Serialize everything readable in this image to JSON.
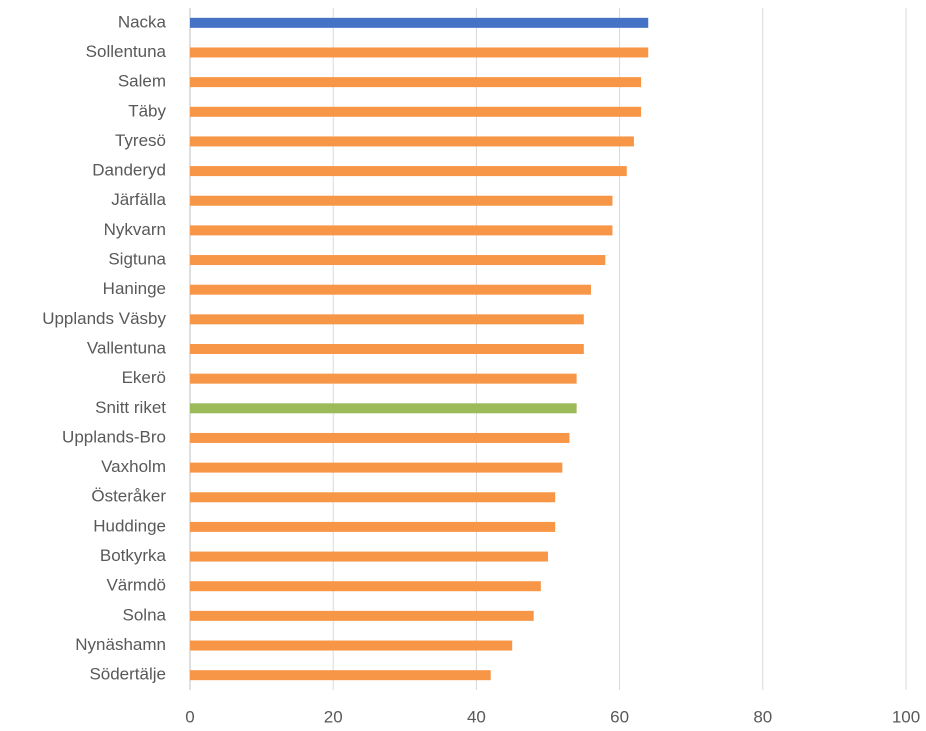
{
  "chart_data": {
    "type": "barh",
    "categories": [
      "Nacka",
      "Sollentuna",
      "Salem",
      "Täby",
      "Tyresö",
      "Danderyd",
      "Järfälla",
      "Nykvarn",
      "Sigtuna",
      "Haninge",
      "Upplands Väsby",
      "Vallentuna",
      "Ekerö",
      "Snitt riket",
      "Upplands-Bro",
      "Vaxholm",
      "Österåker",
      "Huddinge",
      "Botkyrka",
      "Värmdö",
      "Solna",
      "Nynäshamn",
      "Södertälje"
    ],
    "values": [
      64,
      64,
      63,
      63,
      62,
      61,
      59,
      59,
      58,
      56,
      55,
      55,
      54,
      54,
      53,
      52,
      51,
      51,
      50,
      49,
      48,
      45,
      42
    ],
    "colors": [
      "#4472c4",
      "#f79646",
      "#f79646",
      "#f79646",
      "#f79646",
      "#f79646",
      "#f79646",
      "#f79646",
      "#f79646",
      "#f79646",
      "#f79646",
      "#f79646",
      "#f79646",
      "#9bbb59",
      "#f79646",
      "#f79646",
      "#f79646",
      "#f79646",
      "#f79646",
      "#f79646",
      "#f79646",
      "#f79646",
      "#f79646"
    ],
    "xlim": [
      0,
      100
    ],
    "xticks": [
      0,
      20,
      40,
      60,
      80,
      100
    ],
    "grid": true
  }
}
